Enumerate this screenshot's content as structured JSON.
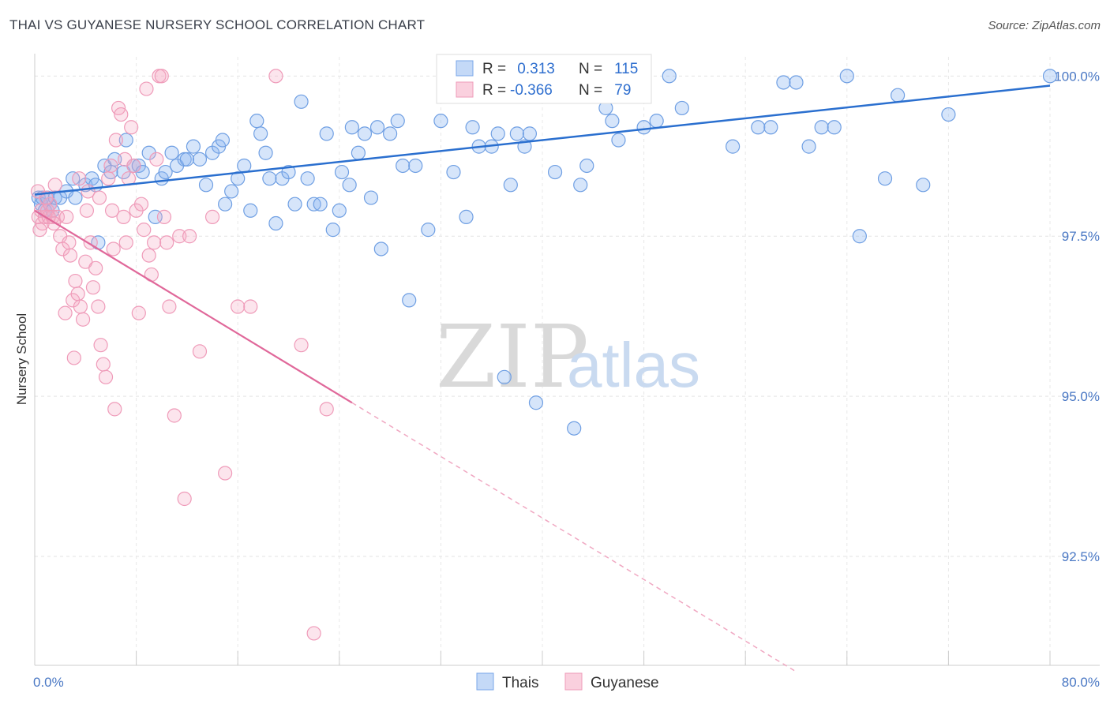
{
  "title": "THAI VS GUYANESE NURSERY SCHOOL CORRELATION CHART",
  "source": "Source: ZipAtlas.com",
  "legend_box": {
    "rows": [
      {
        "r_label": "R =",
        "r_value": " 0.313",
        "n_label": "N =",
        "n_value": "115",
        "color": "#8ab4f0"
      },
      {
        "r_label": "R =",
        "r_value": "-0.366",
        "n_label": "N =",
        "n_value": " 79",
        "color": "#f5a8c2"
      }
    ]
  },
  "bottom_legend": [
    {
      "label": "Thais",
      "color": "#8ab4f0"
    },
    {
      "label": "Guyanese",
      "color": "#f5a8c2"
    }
  ],
  "watermark": {
    "zip": "ZIP",
    "atlas": "atlas"
  },
  "colors": {
    "blue": "#4a86e0",
    "pink": "#ec7ba3",
    "blue_line": "#2a6fcf",
    "pink_line": "#e0689a"
  },
  "chart_data": {
    "type": "scatter",
    "ylabel": "Nursery School",
    "xlim": [
      0,
      80
    ],
    "ylim": [
      90.8,
      100.3
    ],
    "x_tick_labels": [
      "0.0%",
      "80.0%"
    ],
    "y_ticks": [
      92.5,
      95.0,
      97.5,
      100.0
    ],
    "y_tick_labels": [
      "92.5%",
      "95.0%",
      "97.5%",
      "100.0%"
    ],
    "grid": true,
    "series": [
      {
        "name": "Thais",
        "trend": {
          "x": [
            0,
            80
          ],
          "y": [
            98.15,
            99.85
          ],
          "dashed_from": null
        },
        "points": [
          [
            0.3,
            98.1
          ],
          [
            0.5,
            98.0
          ],
          [
            0.6,
            98.1
          ],
          [
            0.8,
            97.9
          ],
          [
            1.0,
            98.1
          ],
          [
            1.2,
            98.0
          ],
          [
            1.4,
            97.9
          ],
          [
            1.6,
            98.1
          ],
          [
            2.0,
            98.1
          ],
          [
            2.5,
            98.2
          ],
          [
            3.0,
            98.4
          ],
          [
            3.2,
            98.1
          ],
          [
            4.0,
            98.3
          ],
          [
            4.5,
            98.4
          ],
          [
            4.8,
            98.3
          ],
          [
            5.0,
            97.4
          ],
          [
            5.5,
            98.6
          ],
          [
            6.0,
            98.5
          ],
          [
            6.3,
            98.7
          ],
          [
            7.0,
            98.5
          ],
          [
            7.2,
            99.0
          ],
          [
            7.8,
            98.6
          ],
          [
            8.2,
            98.6
          ],
          [
            8.5,
            98.5
          ],
          [
            9.0,
            98.8
          ],
          [
            9.5,
            97.8
          ],
          [
            10.0,
            98.4
          ],
          [
            10.3,
            98.5
          ],
          [
            10.8,
            98.8
          ],
          [
            11.2,
            98.6
          ],
          [
            11.8,
            98.7
          ],
          [
            12.0,
            98.7
          ],
          [
            12.5,
            98.9
          ],
          [
            13.0,
            98.7
          ],
          [
            13.5,
            98.3
          ],
          [
            14.0,
            98.8
          ],
          [
            14.5,
            98.9
          ],
          [
            14.8,
            99.0
          ],
          [
            15.0,
            98.0
          ],
          [
            15.5,
            98.2
          ],
          [
            16.0,
            98.4
          ],
          [
            16.5,
            98.6
          ],
          [
            17.0,
            97.9
          ],
          [
            17.5,
            99.3
          ],
          [
            17.8,
            99.1
          ],
          [
            18.2,
            98.8
          ],
          [
            18.5,
            98.4
          ],
          [
            19.0,
            97.7
          ],
          [
            19.5,
            98.4
          ],
          [
            20.0,
            98.5
          ],
          [
            20.5,
            98.0
          ],
          [
            21.0,
            99.6
          ],
          [
            21.5,
            98.4
          ],
          [
            22.0,
            98.0
          ],
          [
            22.5,
            98.0
          ],
          [
            23.0,
            99.1
          ],
          [
            23.5,
            97.6
          ],
          [
            24.0,
            97.9
          ],
          [
            24.2,
            98.5
          ],
          [
            24.8,
            98.3
          ],
          [
            25.0,
            99.2
          ],
          [
            25.5,
            98.8
          ],
          [
            26.0,
            99.1
          ],
          [
            26.5,
            98.1
          ],
          [
            27.0,
            99.2
          ],
          [
            27.3,
            97.3
          ],
          [
            28.0,
            99.1
          ],
          [
            28.6,
            99.3
          ],
          [
            29.0,
            98.6
          ],
          [
            29.5,
            96.5
          ],
          [
            30.0,
            98.6
          ],
          [
            31.0,
            97.6
          ],
          [
            32.0,
            99.3
          ],
          [
            32.5,
            100.0
          ],
          [
            33.0,
            98.5
          ],
          [
            34.0,
            97.8
          ],
          [
            34.5,
            99.2
          ],
          [
            35.0,
            98.9
          ],
          [
            36.0,
            98.9
          ],
          [
            36.5,
            99.1
          ],
          [
            37.0,
            95.3
          ],
          [
            37.5,
            98.3
          ],
          [
            38.0,
            99.1
          ],
          [
            38.6,
            98.9
          ],
          [
            39.0,
            99.1
          ],
          [
            39.5,
            94.9
          ],
          [
            40.0,
            99.9
          ],
          [
            41.0,
            98.5
          ],
          [
            42.0,
            100.0
          ],
          [
            42.5,
            94.5
          ],
          [
            43.0,
            98.3
          ],
          [
            43.5,
            98.6
          ],
          [
            45.0,
            99.5
          ],
          [
            45.5,
            99.3
          ],
          [
            46.0,
            99.0
          ],
          [
            47.0,
            99.9
          ],
          [
            48.0,
            99.2
          ],
          [
            49.0,
            99.3
          ],
          [
            50.0,
            100.0
          ],
          [
            51.0,
            99.5
          ],
          [
            55.0,
            98.9
          ],
          [
            57.0,
            99.2
          ],
          [
            58.0,
            99.2
          ],
          [
            59.0,
            99.9
          ],
          [
            60.0,
            99.9
          ],
          [
            61.0,
            98.9
          ],
          [
            62.0,
            99.2
          ],
          [
            63.0,
            99.2
          ],
          [
            64.0,
            100.0
          ],
          [
            65.0,
            97.5
          ],
          [
            67.0,
            98.4
          ],
          [
            68.0,
            99.7
          ],
          [
            72.0,
            99.4
          ],
          [
            84.0,
            100.0
          ],
          [
            70.0,
            98.3
          ]
        ]
      },
      {
        "name": "Guyanese",
        "trend": {
          "x": [
            0,
            60
          ],
          "y": [
            97.9,
            90.7
          ],
          "solid_until": 25
        },
        "points": [
          [
            0.2,
            98.2
          ],
          [
            0.3,
            97.8
          ],
          [
            0.5,
            97.9
          ],
          [
            0.6,
            97.7
          ],
          [
            0.8,
            97.8
          ],
          [
            1.0,
            97.9
          ],
          [
            1.2,
            98.0
          ],
          [
            1.4,
            97.8
          ],
          [
            1.6,
            98.3
          ],
          [
            1.8,
            97.8
          ],
          [
            2.0,
            97.5
          ],
          [
            2.2,
            97.3
          ],
          [
            2.5,
            97.8
          ],
          [
            2.8,
            97.2
          ],
          [
            3.0,
            96.5
          ],
          [
            3.2,
            96.8
          ],
          [
            3.4,
            96.6
          ],
          [
            3.6,
            96.4
          ],
          [
            3.8,
            96.2
          ],
          [
            4.0,
            97.1
          ],
          [
            4.2,
            98.2
          ],
          [
            4.4,
            97.4
          ],
          [
            4.6,
            96.7
          ],
          [
            4.8,
            97.0
          ],
          [
            5.0,
            96.4
          ],
          [
            5.2,
            95.8
          ],
          [
            5.4,
            95.5
          ],
          [
            5.6,
            95.3
          ],
          [
            5.8,
            98.4
          ],
          [
            6.0,
            98.6
          ],
          [
            6.2,
            97.3
          ],
          [
            6.4,
            99.0
          ],
          [
            6.6,
            99.5
          ],
          [
            6.8,
            99.4
          ],
          [
            7.0,
            97.8
          ],
          [
            7.2,
            97.4
          ],
          [
            7.4,
            98.4
          ],
          [
            7.6,
            99.2
          ],
          [
            7.8,
            98.6
          ],
          [
            8.0,
            97.9
          ],
          [
            8.2,
            96.3
          ],
          [
            8.4,
            98.0
          ],
          [
            8.6,
            97.6
          ],
          [
            8.8,
            99.8
          ],
          [
            9.0,
            97.2
          ],
          [
            9.2,
            96.9
          ],
          [
            9.4,
            97.4
          ],
          [
            9.6,
            98.7
          ],
          [
            9.8,
            100.0
          ],
          [
            10.0,
            100.0
          ],
          [
            10.2,
            97.8
          ],
          [
            10.4,
            97.4
          ],
          [
            10.6,
            96.4
          ],
          [
            11.0,
            94.7
          ],
          [
            11.4,
            97.5
          ],
          [
            11.8,
            93.4
          ],
          [
            12.2,
            97.5
          ],
          [
            13.0,
            95.7
          ],
          [
            14.0,
            97.8
          ],
          [
            15.0,
            93.8
          ],
          [
            16.0,
            96.4
          ],
          [
            17.0,
            96.4
          ],
          [
            19.0,
            100.0
          ],
          [
            21.0,
            95.8
          ],
          [
            22.0,
            91.3
          ],
          [
            23.0,
            94.8
          ],
          [
            2.4,
            96.3
          ],
          [
            3.1,
            95.6
          ],
          [
            4.1,
            97.9
          ],
          [
            5.1,
            98.1
          ],
          [
            6.1,
            97.9
          ],
          [
            6.3,
            94.8
          ],
          [
            7.1,
            98.7
          ],
          [
            3.5,
            98.4
          ],
          [
            2.7,
            97.4
          ],
          [
            1.5,
            97.7
          ],
          [
            0.9,
            98.1
          ],
          [
            0.4,
            97.6
          ],
          [
            1.1,
            97.8
          ]
        ]
      }
    ]
  }
}
